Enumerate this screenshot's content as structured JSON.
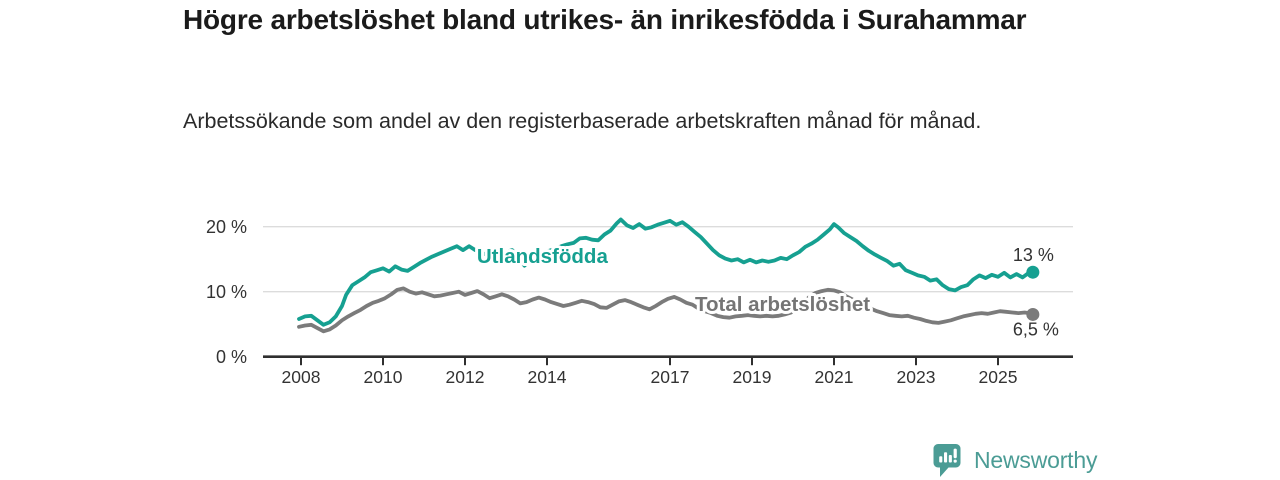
{
  "title": "Högre arbetslöshet bland utrikes- än inrikesfödda i Surahammar",
  "subtitle": "Arbetssökande som andel av den registerbaserade arbetskraften månad för månad.",
  "footer": {
    "brand": "Newsworthy",
    "logo_icon": "newsworthy-speech-bubble-chart-icon"
  },
  "colors": {
    "foreign_born_line": "#16a091",
    "total_line": "#7b7b7b",
    "title_text": "#1b1b1b",
    "axis_text": "#333333",
    "gridline": "#dcdcdc",
    "axis_line": "#2f2f2f",
    "brand_teal": "#4b9c95"
  },
  "chart_data": {
    "type": "line",
    "title": "Högre arbetslöshet bland utrikes- än inrikesfödda i Surahammar",
    "subtitle": "Arbetssökande som andel av den registerbaserade arbetskraften månad för månad.",
    "x_axis": {
      "ticks": [
        2008,
        2010,
        2012,
        2014,
        2017,
        2019,
        2021,
        2023,
        2025
      ],
      "tick_labels": [
        "2008",
        "2010",
        "2012",
        "2014",
        "2017",
        "2019",
        "2021",
        "2023",
        "2025"
      ],
      "range": [
        2007.6,
        2026.3
      ]
    },
    "y_axis": {
      "ticks": [
        0,
        10,
        20
      ],
      "tick_labels": [
        "0 %",
        "10 %",
        "20 %"
      ],
      "range": [
        0,
        22
      ],
      "unit": "%",
      "grid": true
    },
    "legend_position": "inline-labels",
    "series_labels": [
      {
        "text": "Utlandsfödda",
        "x": 2012.29,
        "y": 14.4,
        "color": "#16a091"
      },
      {
        "text": "Total arbetslöshet",
        "x": 2017.61,
        "y": 7.05,
        "color": "#757575"
      }
    ],
    "series": [
      {
        "name": "Utlandsfödda",
        "color": "#16a091",
        "end_label": "13 %",
        "end_value": 13,
        "points": [
          [
            2007.95,
            5.8
          ],
          [
            2008.1,
            6.2
          ],
          [
            2008.25,
            6.3
          ],
          [
            2008.4,
            5.6
          ],
          [
            2008.55,
            4.9
          ],
          [
            2008.7,
            5.3
          ],
          [
            2008.85,
            6.2
          ],
          [
            2009.0,
            7.8
          ],
          [
            2009.1,
            9.5
          ],
          [
            2009.25,
            11.0
          ],
          [
            2009.4,
            11.6
          ],
          [
            2009.55,
            12.2
          ],
          [
            2009.7,
            13.0
          ],
          [
            2009.85,
            13.3
          ],
          [
            2010.0,
            13.6
          ],
          [
            2010.15,
            13.1
          ],
          [
            2010.3,
            13.9
          ],
          [
            2010.45,
            13.4
          ],
          [
            2010.6,
            13.2
          ],
          [
            2010.75,
            13.8
          ],
          [
            2010.9,
            14.4
          ],
          [
            2011.05,
            14.9
          ],
          [
            2011.2,
            15.4
          ],
          [
            2011.35,
            15.8
          ],
          [
            2011.5,
            16.2
          ],
          [
            2011.65,
            16.6
          ],
          [
            2011.8,
            17.0
          ],
          [
            2011.95,
            16.4
          ],
          [
            2012.1,
            17.0
          ],
          [
            2012.25,
            16.4
          ],
          [
            2012.4,
            16.0
          ],
          [
            2012.55,
            15.6
          ],
          [
            2012.7,
            15.3
          ],
          [
            2012.85,
            15.8
          ],
          [
            2013.0,
            16.1
          ],
          [
            2013.15,
            16.4
          ],
          [
            2013.3,
            15.2
          ],
          [
            2013.45,
            14.0
          ],
          [
            2013.6,
            15.0
          ],
          [
            2013.75,
            15.6
          ],
          [
            2013.9,
            16.0
          ],
          [
            2014.05,
            16.3
          ],
          [
            2014.2,
            16.6
          ],
          [
            2014.35,
            17.0
          ],
          [
            2014.5,
            17.3
          ],
          [
            2014.65,
            17.5
          ],
          [
            2014.8,
            18.2
          ],
          [
            2014.95,
            18.3
          ],
          [
            2015.1,
            18.0
          ],
          [
            2015.25,
            17.9
          ],
          [
            2015.4,
            18.8
          ],
          [
            2015.55,
            19.4
          ],
          [
            2015.7,
            20.5
          ],
          [
            2015.8,
            21.1
          ],
          [
            2015.95,
            20.2
          ],
          [
            2016.1,
            19.8
          ],
          [
            2016.25,
            20.4
          ],
          [
            2016.4,
            19.7
          ],
          [
            2016.55,
            19.9
          ],
          [
            2016.7,
            20.3
          ],
          [
            2016.85,
            20.6
          ],
          [
            2017.0,
            20.9
          ],
          [
            2017.15,
            20.3
          ],
          [
            2017.3,
            20.7
          ],
          [
            2017.45,
            20.0
          ],
          [
            2017.6,
            19.2
          ],
          [
            2017.75,
            18.4
          ],
          [
            2017.9,
            17.4
          ],
          [
            2018.05,
            16.4
          ],
          [
            2018.2,
            15.6
          ],
          [
            2018.35,
            15.1
          ],
          [
            2018.5,
            14.8
          ],
          [
            2018.65,
            15.0
          ],
          [
            2018.8,
            14.5
          ],
          [
            2018.95,
            14.9
          ],
          [
            2019.1,
            14.5
          ],
          [
            2019.25,
            14.8
          ],
          [
            2019.4,
            14.6
          ],
          [
            2019.55,
            14.8
          ],
          [
            2019.7,
            15.2
          ],
          [
            2019.85,
            15.0
          ],
          [
            2020.0,
            15.6
          ],
          [
            2020.15,
            16.1
          ],
          [
            2020.3,
            16.9
          ],
          [
            2020.45,
            17.4
          ],
          [
            2020.6,
            18.0
          ],
          [
            2020.75,
            18.8
          ],
          [
            2020.9,
            19.6
          ],
          [
            2021.0,
            20.4
          ],
          [
            2021.1,
            19.9
          ],
          [
            2021.25,
            19.0
          ],
          [
            2021.4,
            18.4
          ],
          [
            2021.55,
            17.8
          ],
          [
            2021.7,
            17.0
          ],
          [
            2021.85,
            16.3
          ],
          [
            2022.0,
            15.7
          ],
          [
            2022.15,
            15.2
          ],
          [
            2022.3,
            14.7
          ],
          [
            2022.45,
            14.0
          ],
          [
            2022.6,
            14.3
          ],
          [
            2022.75,
            13.3
          ],
          [
            2022.9,
            12.9
          ],
          [
            2023.05,
            12.5
          ],
          [
            2023.2,
            12.3
          ],
          [
            2023.35,
            11.7
          ],
          [
            2023.5,
            11.9
          ],
          [
            2023.65,
            11.0
          ],
          [
            2023.8,
            10.4
          ],
          [
            2023.95,
            10.2
          ],
          [
            2024.1,
            10.7
          ],
          [
            2024.25,
            11.0
          ],
          [
            2024.4,
            11.9
          ],
          [
            2024.55,
            12.5
          ],
          [
            2024.7,
            12.1
          ],
          [
            2024.85,
            12.6
          ],
          [
            2025.0,
            12.3
          ],
          [
            2025.15,
            12.9
          ],
          [
            2025.3,
            12.2
          ],
          [
            2025.45,
            12.7
          ],
          [
            2025.6,
            12.2
          ],
          [
            2025.75,
            12.9
          ],
          [
            2025.85,
            13.0
          ]
        ]
      },
      {
        "name": "Total arbetslöshet",
        "color": "#7b7b7b",
        "end_label": "6,5 %",
        "end_value": 6.5,
        "points": [
          [
            2007.95,
            4.6
          ],
          [
            2008.1,
            4.8
          ],
          [
            2008.25,
            4.9
          ],
          [
            2008.4,
            4.4
          ],
          [
            2008.55,
            3.9
          ],
          [
            2008.7,
            4.2
          ],
          [
            2008.85,
            4.8
          ],
          [
            2009.0,
            5.6
          ],
          [
            2009.15,
            6.2
          ],
          [
            2009.3,
            6.7
          ],
          [
            2009.45,
            7.2
          ],
          [
            2009.6,
            7.8
          ],
          [
            2009.75,
            8.3
          ],
          [
            2009.9,
            8.6
          ],
          [
            2010.05,
            9.0
          ],
          [
            2010.2,
            9.6
          ],
          [
            2010.35,
            10.3
          ],
          [
            2010.5,
            10.5
          ],
          [
            2010.65,
            10.0
          ],
          [
            2010.8,
            9.7
          ],
          [
            2010.95,
            9.9
          ],
          [
            2011.1,
            9.6
          ],
          [
            2011.25,
            9.3
          ],
          [
            2011.4,
            9.4
          ],
          [
            2011.55,
            9.6
          ],
          [
            2011.7,
            9.8
          ],
          [
            2011.85,
            10.0
          ],
          [
            2012.0,
            9.5
          ],
          [
            2012.15,
            9.8
          ],
          [
            2012.3,
            10.1
          ],
          [
            2012.45,
            9.6
          ],
          [
            2012.6,
            9.0
          ],
          [
            2012.75,
            9.3
          ],
          [
            2012.9,
            9.6
          ],
          [
            2013.05,
            9.3
          ],
          [
            2013.2,
            8.8
          ],
          [
            2013.35,
            8.2
          ],
          [
            2013.5,
            8.4
          ],
          [
            2013.65,
            8.8
          ],
          [
            2013.8,
            9.1
          ],
          [
            2013.95,
            8.8
          ],
          [
            2014.1,
            8.4
          ],
          [
            2014.25,
            8.1
          ],
          [
            2014.4,
            7.8
          ],
          [
            2014.55,
            8.0
          ],
          [
            2014.7,
            8.3
          ],
          [
            2014.85,
            8.6
          ],
          [
            2015.0,
            8.4
          ],
          [
            2015.15,
            8.1
          ],
          [
            2015.3,
            7.6
          ],
          [
            2015.45,
            7.5
          ],
          [
            2015.6,
            8.0
          ],
          [
            2015.75,
            8.5
          ],
          [
            2015.9,
            8.7
          ],
          [
            2016.05,
            8.4
          ],
          [
            2016.2,
            8.0
          ],
          [
            2016.35,
            7.6
          ],
          [
            2016.5,
            7.3
          ],
          [
            2016.65,
            7.8
          ],
          [
            2016.8,
            8.4
          ],
          [
            2016.95,
            8.9
          ],
          [
            2017.1,
            9.2
          ],
          [
            2017.25,
            8.8
          ],
          [
            2017.4,
            8.3
          ],
          [
            2017.55,
            8.0
          ],
          [
            2017.7,
            7.4
          ],
          [
            2017.85,
            7.0
          ],
          [
            2018.0,
            6.7
          ],
          [
            2018.15,
            6.3
          ],
          [
            2018.3,
            6.1
          ],
          [
            2018.45,
            6.0
          ],
          [
            2018.6,
            6.2
          ],
          [
            2018.75,
            6.3
          ],
          [
            2018.9,
            6.4
          ],
          [
            2019.05,
            6.3
          ],
          [
            2019.2,
            6.2
          ],
          [
            2019.35,
            6.3
          ],
          [
            2019.5,
            6.2
          ],
          [
            2019.65,
            6.3
          ],
          [
            2019.8,
            6.5
          ],
          [
            2019.95,
            6.8
          ],
          [
            2020.1,
            7.4
          ],
          [
            2020.25,
            8.3
          ],
          [
            2020.4,
            9.2
          ],
          [
            2020.55,
            9.8
          ],
          [
            2020.7,
            10.1
          ],
          [
            2020.85,
            10.3
          ],
          [
            2021.0,
            10.2
          ],
          [
            2021.15,
            9.9
          ],
          [
            2021.3,
            9.3
          ],
          [
            2021.45,
            8.8
          ],
          [
            2021.6,
            8.4
          ],
          [
            2021.75,
            7.9
          ],
          [
            2021.9,
            7.4
          ],
          [
            2022.05,
            7.0
          ],
          [
            2022.2,
            6.7
          ],
          [
            2022.35,
            6.4
          ],
          [
            2022.5,
            6.3
          ],
          [
            2022.65,
            6.2
          ],
          [
            2022.8,
            6.3
          ],
          [
            2022.95,
            6.0
          ],
          [
            2023.1,
            5.8
          ],
          [
            2023.25,
            5.5
          ],
          [
            2023.4,
            5.3
          ],
          [
            2023.55,
            5.2
          ],
          [
            2023.7,
            5.4
          ],
          [
            2023.85,
            5.6
          ],
          [
            2024.0,
            5.9
          ],
          [
            2024.15,
            6.2
          ],
          [
            2024.3,
            6.4
          ],
          [
            2024.45,
            6.6
          ],
          [
            2024.6,
            6.7
          ],
          [
            2024.75,
            6.6
          ],
          [
            2024.9,
            6.8
          ],
          [
            2025.05,
            7.0
          ],
          [
            2025.2,
            6.9
          ],
          [
            2025.35,
            6.8
          ],
          [
            2025.5,
            6.7
          ],
          [
            2025.65,
            6.8
          ],
          [
            2025.75,
            6.7
          ],
          [
            2025.85,
            6.5
          ]
        ]
      }
    ]
  }
}
